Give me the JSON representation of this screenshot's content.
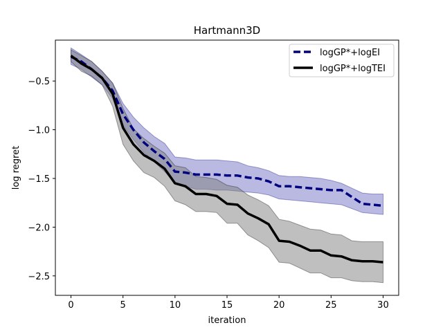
{
  "chart_data": {
    "type": "line",
    "title": "Hartmann3D",
    "xlabel": "iteration",
    "ylabel": "log regret",
    "xlim": [
      -1.5,
      31.5
    ],
    "ylim": [
      -2.7,
      -0.08
    ],
    "xticks": [
      0,
      5,
      10,
      15,
      20,
      25,
      30
    ],
    "yticks": [
      -0.5,
      -1.0,
      -1.5,
      -2.0,
      -2.5
    ],
    "ytick_labels": [
      "−0.5",
      "−1.0",
      "−1.5",
      "−2.0",
      "−2.5"
    ],
    "grid": false,
    "legend_position": "top-right",
    "x": [
      0,
      1,
      2,
      3,
      4,
      5,
      6,
      7,
      8,
      9,
      10,
      11,
      12,
      13,
      14,
      15,
      16,
      17,
      18,
      19,
      20,
      21,
      22,
      23,
      24,
      25,
      26,
      27,
      28,
      29,
      30
    ],
    "series": [
      {
        "name": "logGP*+logEI",
        "color": "#00007f",
        "band_color": "#7373c5",
        "line_style": "dashed",
        "values": [
          -0.25,
          -0.3,
          -0.38,
          -0.47,
          -0.6,
          -0.84,
          -1.0,
          -1.13,
          -1.22,
          -1.3,
          -1.43,
          -1.44,
          -1.46,
          -1.46,
          -1.46,
          -1.47,
          -1.47,
          -1.49,
          -1.5,
          -1.53,
          -1.58,
          -1.58,
          -1.59,
          -1.6,
          -1.61,
          -1.62,
          -1.62,
          -1.69,
          -1.76,
          -1.77,
          -1.78
        ],
        "upper": [
          -0.16,
          -0.23,
          -0.3,
          -0.4,
          -0.52,
          -0.73,
          -0.87,
          -0.98,
          -1.07,
          -1.14,
          -1.28,
          -1.29,
          -1.31,
          -1.31,
          -1.31,
          -1.32,
          -1.33,
          -1.37,
          -1.39,
          -1.42,
          -1.47,
          -1.48,
          -1.48,
          -1.49,
          -1.5,
          -1.52,
          -1.55,
          -1.6,
          -1.65,
          -1.66,
          -1.66
        ],
        "lower": [
          -0.33,
          -0.38,
          -0.46,
          -0.54,
          -0.68,
          -0.95,
          -1.1,
          -1.23,
          -1.33,
          -1.43,
          -1.55,
          -1.58,
          -1.61,
          -1.61,
          -1.62,
          -1.62,
          -1.63,
          -1.64,
          -1.65,
          -1.67,
          -1.71,
          -1.72,
          -1.73,
          -1.74,
          -1.75,
          -1.76,
          -1.77,
          -1.81,
          -1.85,
          -1.86,
          -1.87
        ]
      },
      {
        "name": "logGP*+logTEI",
        "color": "#000000",
        "band_color": "#808080",
        "line_style": "solid",
        "values": [
          -0.24,
          -0.32,
          -0.38,
          -0.47,
          -0.63,
          -0.98,
          -1.15,
          -1.26,
          -1.32,
          -1.4,
          -1.55,
          -1.58,
          -1.66,
          -1.66,
          -1.68,
          -1.76,
          -1.77,
          -1.86,
          -1.91,
          -1.97,
          -2.14,
          -2.15,
          -2.19,
          -2.24,
          -2.24,
          -2.29,
          -2.3,
          -2.34,
          -2.35,
          -2.35,
          -2.36
        ],
        "upper": [
          -0.18,
          -0.24,
          -0.3,
          -0.4,
          -0.52,
          -0.78,
          -0.99,
          -1.09,
          -1.17,
          -1.24,
          -1.37,
          -1.39,
          -1.48,
          -1.49,
          -1.51,
          -1.57,
          -1.59,
          -1.67,
          -1.72,
          -1.78,
          -1.92,
          -1.94,
          -1.98,
          -2.02,
          -2.03,
          -2.07,
          -2.08,
          -2.14,
          -2.15,
          -2.15,
          -2.15
        ],
        "lower": [
          -0.3,
          -0.4,
          -0.45,
          -0.54,
          -0.76,
          -1.15,
          -1.32,
          -1.44,
          -1.49,
          -1.58,
          -1.73,
          -1.77,
          -1.84,
          -1.84,
          -1.85,
          -1.96,
          -1.96,
          -2.08,
          -2.14,
          -2.21,
          -2.36,
          -2.37,
          -2.42,
          -2.47,
          -2.47,
          -2.52,
          -2.52,
          -2.55,
          -2.56,
          -2.56,
          -2.57
        ]
      }
    ]
  }
}
